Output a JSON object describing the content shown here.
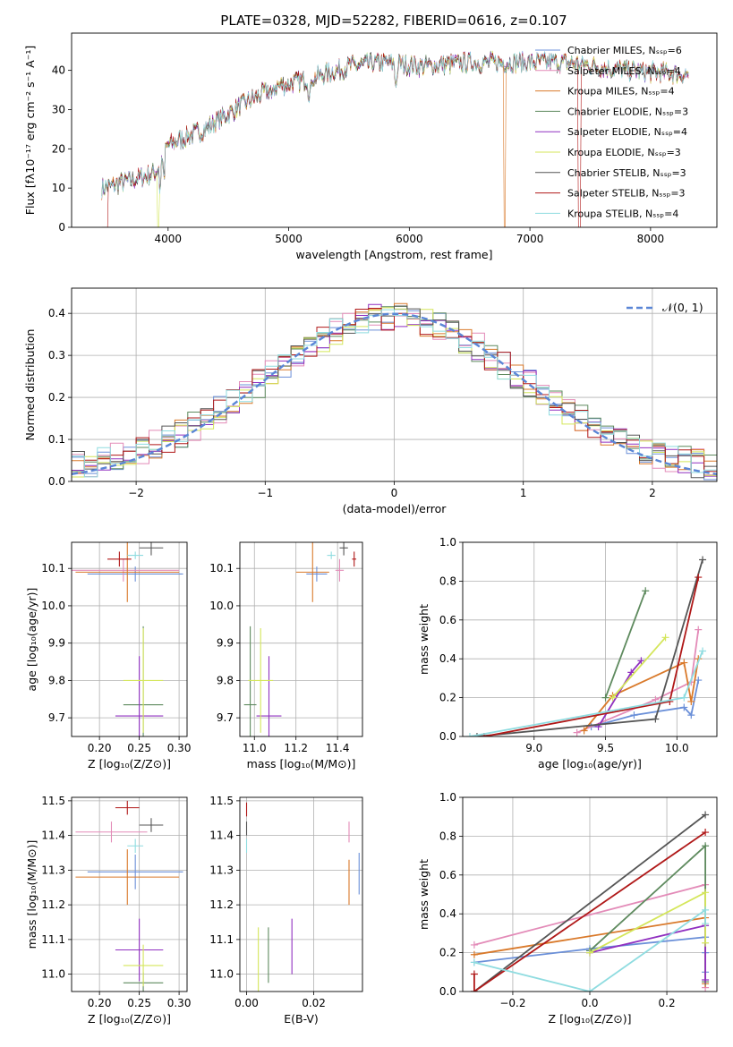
{
  "figure_title": "PLATE=0328, MJD=52282, FIBERID=0616, z=0.107",
  "colors": {
    "Chabrier MILES": "#6a8fd8",
    "Salpeter MILES": "#e38bb8",
    "Kroupa MILES": "#d9792a",
    "Chabrier ELODIE": "#5e8a5e",
    "Salpeter ELODIE": "#9030c0",
    "Kroupa ELODIE": "#d4e65a",
    "Chabrier STELIB": "#555555",
    "Salpeter STELIB": "#b01818",
    "Kroupa STELIB": "#8fdce0"
  },
  "chart_data": [
    {
      "id": "spectrum",
      "type": "line",
      "title": "PLATE=0328, MJD=52282, FIBERID=0616, z=0.107",
      "xlabel": "wavelength [Angstrom, rest frame]",
      "ylabel": "Flux [fλ10⁻¹⁷ erg cm⁻² s⁻¹ A⁻¹]",
      "xlim": [
        3200,
        8550
      ],
      "ylim": [
        0,
        49.5
      ],
      "xticks": [
        4000,
        5000,
        6000,
        7000,
        8000
      ],
      "yticks": [
        0,
        10,
        20,
        30,
        40
      ],
      "grid": false,
      "legend_position": "right",
      "series": [
        {
          "name": "Chabrier MILES, Nₛₛₚ=6"
        },
        {
          "name": "Salpeter MILES, Nₛₛₚ=4"
        },
        {
          "name": "Kroupa MILES, Nₛₛₚ=4"
        },
        {
          "name": "Chabrier ELODIE, Nₛₛₚ=3"
        },
        {
          "name": "Salpeter ELODIE, Nₛₛₚ=4"
        },
        {
          "name": "Kroupa ELODIE, Nₛₛₚ=3"
        },
        {
          "name": "Chabrier STELIB, Nₛₛₚ=3"
        },
        {
          "name": "Salpeter STELIB, Nₛₛₚ=3"
        },
        {
          "name": "Kroupa STELIB, Nₛₛₚ=4"
        }
      ],
      "continuum": [
        [
          3450,
          10
        ],
        [
          3700,
          12
        ],
        [
          3900,
          14
        ],
        [
          4000,
          21
        ],
        [
          4300,
          25
        ],
        [
          4600,
          31
        ],
        [
          4900,
          36
        ],
        [
          5200,
          38
        ],
        [
          5500,
          41
        ],
        [
          5800,
          42
        ],
        [
          6100,
          41
        ],
        [
          6500,
          42
        ],
        [
          6900,
          42
        ],
        [
          7300,
          42
        ],
        [
          7800,
          40
        ],
        [
          8300,
          39
        ]
      ]
    },
    {
      "id": "residuals",
      "type": "bar",
      "xlabel": "(data-model)/error",
      "ylabel": "Normed distribution",
      "xlim": [
        -2.5,
        2.5
      ],
      "ylim": [
        0,
        0.46
      ],
      "xticks": [
        -2,
        -1,
        0,
        1,
        2
      ],
      "yticks": [
        0.0,
        0.1,
        0.2,
        0.3,
        0.4
      ],
      "grid": true,
      "legend": "𝒩(0, 1)",
      "legend_position": "top-right",
      "bin_width": 0.1
    },
    {
      "id": "age_vs_Z",
      "type": "scatter",
      "xlabel": "Z [log₁₀(Z/Z⊙)]",
      "ylabel": "age  [log₁₀(age/yr)]",
      "xlim": [
        0.165,
        0.31
      ],
      "ylim": [
        9.65,
        10.17
      ],
      "xticks": [
        0.2,
        0.25,
        0.3
      ],
      "yticks": [
        9.7,
        9.8,
        9.9,
        10.0,
        10.1
      ],
      "grid": true,
      "points": [
        {
          "model": "Chabrier MILES",
          "x": 0.245,
          "xerr": 0.06,
          "y": 10.085,
          "yerr": 0.02
        },
        {
          "model": "Salpeter MILES",
          "x": 0.23,
          "xerr": 0.07,
          "y": 10.095,
          "yerr": 0.03
        },
        {
          "model": "Kroupa MILES",
          "x": 0.235,
          "xerr": 0.065,
          "y": 10.09,
          "yerr": 0.08
        },
        {
          "model": "Chabrier ELODIE",
          "x": 0.255,
          "xerr": 0.025,
          "y": 9.735,
          "yerr": 0.21
        },
        {
          "model": "Salpeter ELODIE",
          "x": 0.25,
          "xerr": 0.03,
          "y": 9.705,
          "yerr": 0.16
        },
        {
          "model": "Kroupa ELODIE",
          "x": 0.255,
          "xerr": 0.025,
          "y": 9.8,
          "yerr": 0.14
        },
        {
          "model": "Chabrier STELIB",
          "x": 0.265,
          "xerr": 0.015,
          "y": 10.155,
          "yerr": 0.02
        },
        {
          "model": "Salpeter STELIB",
          "x": 0.225,
          "xerr": 0.015,
          "y": 10.125,
          "yerr": 0.02
        },
        {
          "model": "Kroupa STELIB",
          "x": 0.245,
          "xerr": 0.01,
          "y": 10.135,
          "yerr": 0.01
        }
      ]
    },
    {
      "id": "age_vs_mass",
      "type": "scatter",
      "xlabel": "mass [log₁₀(M/M⊙)]",
      "xlim": [
        10.93,
        11.52
      ],
      "ylim": [
        9.65,
        10.17
      ],
      "xticks": [
        11.0,
        11.2,
        11.4
      ],
      "yticks": [
        9.7,
        9.8,
        9.9,
        10.0,
        10.1
      ],
      "grid": true,
      "points": [
        {
          "model": "Chabrier MILES",
          "x": 11.3,
          "xerr": 0.05,
          "y": 10.085,
          "yerr": 0.02
        },
        {
          "model": "Salpeter MILES",
          "x": 11.41,
          "xerr": 0.02,
          "y": 10.095,
          "yerr": 0.03
        },
        {
          "model": "Kroupa MILES",
          "x": 11.28,
          "xerr": 0.08,
          "y": 10.09,
          "yerr": 0.08
        },
        {
          "model": "Chabrier ELODIE",
          "x": 10.98,
          "xerr": 0.03,
          "y": 9.735,
          "yerr": 0.21
        },
        {
          "model": "Salpeter ELODIE",
          "x": 11.07,
          "xerr": 0.06,
          "y": 9.705,
          "yerr": 0.16
        },
        {
          "model": "Kroupa ELODIE",
          "x": 11.03,
          "xerr": 0.06,
          "y": 9.8,
          "yerr": 0.14
        },
        {
          "model": "Chabrier STELIB",
          "x": 11.43,
          "xerr": 0.02,
          "y": 10.155,
          "yerr": 0.02
        },
        {
          "model": "Salpeter STELIB",
          "x": 11.48,
          "xerr": 0.01,
          "y": 10.125,
          "yerr": 0.02
        },
        {
          "model": "Kroupa STELIB",
          "x": 11.37,
          "xerr": 0.02,
          "y": 10.135,
          "yerr": 0.01
        }
      ]
    },
    {
      "id": "weight_vs_age",
      "type": "line",
      "xlabel": "age  [log₁₀(age/yr)]",
      "ylabel": "mass weight",
      "xlim": [
        8.5,
        10.28
      ],
      "ylim": [
        0,
        1.0
      ],
      "xticks": [
        9.0,
        9.5,
        10.0
      ],
      "yticks": [
        0.0,
        0.2,
        0.4,
        0.6,
        0.8,
        1.0
      ],
      "grid": true,
      "series": [
        {
          "model": "Chabrier MILES",
          "x": [
            9.4,
            9.7,
            10.05,
            10.1,
            10.15
          ],
          "y": [
            0.05,
            0.11,
            0.15,
            0.11,
            0.29
          ]
        },
        {
          "model": "Salpeter MILES",
          "x": [
            9.3,
            9.85,
            10.1,
            10.15
          ],
          "y": [
            0.02,
            0.19,
            0.28,
            0.55
          ]
        },
        {
          "model": "Kroupa MILES",
          "x": [
            9.35,
            9.55,
            10.05,
            10.1,
            10.15
          ],
          "y": [
            0.03,
            0.21,
            0.38,
            0.18,
            0.4
          ]
        },
        {
          "model": "Chabrier ELODIE",
          "x": [
            9.5,
            9.78
          ],
          "y": [
            0.2,
            0.75
          ]
        },
        {
          "model": "Salpeter ELODIE",
          "x": [
            9.45,
            9.68,
            9.75
          ],
          "y": [
            0.05,
            0.33,
            0.39
          ]
        },
        {
          "model": "Kroupa ELODIE",
          "x": [
            9.55,
            9.92
          ],
          "y": [
            0.2,
            0.51
          ]
        },
        {
          "model": "Chabrier STELIB",
          "x": [
            8.6,
            9.85,
            10.18
          ],
          "y": [
            0.0,
            0.09,
            0.91
          ]
        },
        {
          "model": "Salpeter STELIB",
          "x": [
            8.65,
            9.95,
            10.15
          ],
          "y": [
            0.0,
            0.18,
            0.82
          ]
        },
        {
          "model": "Kroupa STELIB",
          "x": [
            8.55,
            10.05,
            10.18
          ],
          "y": [
            0.0,
            0.2,
            0.44
          ]
        }
      ]
    },
    {
      "id": "mass_vs_Z",
      "type": "scatter",
      "xlabel": "Z [log₁₀(Z/Z⊙)]",
      "ylabel": "mass [log₁₀(M/M⊙)]",
      "xlim": [
        0.165,
        0.31
      ],
      "ylim": [
        10.95,
        11.51
      ],
      "xticks": [
        0.2,
        0.25,
        0.3
      ],
      "yticks": [
        11.0,
        11.1,
        11.2,
        11.3,
        11.4,
        11.5
      ],
      "grid": true,
      "points": [
        {
          "model": "Chabrier MILES",
          "x": 0.245,
          "xerr": 0.06,
          "y": 11.295,
          "yerr": 0.05
        },
        {
          "model": "Salpeter MILES",
          "x": 0.215,
          "xerr": 0.045,
          "y": 11.41,
          "yerr": 0.03
        },
        {
          "model": "Kroupa MILES",
          "x": 0.235,
          "xerr": 0.065,
          "y": 11.28,
          "yerr": 0.08
        },
        {
          "model": "Chabrier ELODIE",
          "x": 0.255,
          "xerr": 0.025,
          "y": 10.975,
          "yerr": 0.03
        },
        {
          "model": "Salpeter ELODIE",
          "x": 0.25,
          "xerr": 0.03,
          "y": 11.07,
          "yerr": 0.09
        },
        {
          "model": "Kroupa ELODIE",
          "x": 0.255,
          "xerr": 0.025,
          "y": 11.025,
          "yerr": 0.06
        },
        {
          "model": "Chabrier STELIB",
          "x": 0.265,
          "xerr": 0.015,
          "y": 11.43,
          "yerr": 0.02
        },
        {
          "model": "Salpeter STELIB",
          "x": 0.235,
          "xerr": 0.015,
          "y": 11.48,
          "yerr": 0.02
        },
        {
          "model": "Kroupa STELIB",
          "x": 0.245,
          "xerr": 0.01,
          "y": 11.37,
          "yerr": 0.02
        }
      ]
    },
    {
      "id": "mass_vs_EBV",
      "type": "scatter",
      "xlabel": "E(B-V)",
      "xlim": [
        -0.002,
        0.0345
      ],
      "ylim": [
        10.95,
        11.51
      ],
      "xticks": [
        0.0,
        0.02
      ],
      "yticks": [
        11.0,
        11.1,
        11.2,
        11.3,
        11.4,
        11.5
      ],
      "grid": true,
      "points": [
        {
          "model": "Chabrier MILES",
          "x": 0.0335,
          "y": 11.29,
          "yerr": 0.06
        },
        {
          "model": "Salpeter MILES",
          "x": 0.0305,
          "y": 11.41,
          "yerr": 0.03
        },
        {
          "model": "Kroupa MILES",
          "x": 0.0305,
          "y": 11.265,
          "yerr": 0.065
        },
        {
          "model": "Chabrier ELODIE",
          "x": 0.0065,
          "y": 11.055,
          "yerr": 0.08
        },
        {
          "model": "Salpeter ELODIE",
          "x": 0.0135,
          "y": 11.08,
          "yerr": 0.08
        },
        {
          "model": "Kroupa ELODIE",
          "x": 0.0035,
          "y": 11.035,
          "yerr": 0.1
        },
        {
          "model": "Chabrier STELIB",
          "x": 0.0,
          "y": 11.42,
          "yerr": 0.02
        },
        {
          "model": "Salpeter STELIB",
          "x": 0.0,
          "y": 11.475,
          "yerr": 0.02
        },
        {
          "model": "Kroupa STELIB",
          "x": 0.0,
          "y": 11.37,
          "yerr": 0.02
        }
      ]
    },
    {
      "id": "weight_vs_Z",
      "type": "line",
      "xlabel": "Z [log₁₀(Z/Z⊙)]",
      "ylabel": "mass weight",
      "xlim": [
        -0.33,
        0.33
      ],
      "ylim": [
        0,
        1.0
      ],
      "xticks": [
        -0.2,
        0.0,
        0.2
      ],
      "yticks": [
        0.0,
        0.2,
        0.4,
        0.6,
        0.8,
        1.0
      ],
      "grid": true,
      "series": [
        {
          "model": "Chabrier MILES",
          "x": [
            -0.3,
            0.0,
            0.3,
            0.3,
            0.3
          ],
          "y": [
            0.15,
            0.22,
            0.28,
            0.2,
            0.1
          ]
        },
        {
          "model": "Salpeter MILES",
          "x": [
            -0.3,
            0.3,
            0.3
          ],
          "y": [
            0.24,
            0.55,
            0.02
          ]
        },
        {
          "model": "Kroupa MILES",
          "x": [
            -0.3,
            0.3,
            0.3
          ],
          "y": [
            0.19,
            0.38,
            0.04
          ]
        },
        {
          "model": "Chabrier ELODIE",
          "x": [
            0.0,
            0.3,
            0.3
          ],
          "y": [
            0.21,
            0.75,
            0.05
          ]
        },
        {
          "model": "Salpeter ELODIE",
          "x": [
            0.0,
            0.3,
            0.3
          ],
          "y": [
            0.2,
            0.34,
            0.06
          ]
        },
        {
          "model": "Kroupa ELODIE",
          "x": [
            0.0,
            0.3,
            0.3
          ],
          "y": [
            0.2,
            0.51,
            0.25
          ]
        },
        {
          "model": "Chabrier STELIB",
          "x": [
            -0.3,
            0.3
          ],
          "y": [
            0.0,
            0.91
          ]
        },
        {
          "model": "Salpeter STELIB",
          "x": [
            -0.3,
            -0.3,
            0.3
          ],
          "y": [
            0.09,
            0.0,
            0.82
          ]
        },
        {
          "model": "Kroupa STELIB",
          "x": [
            -0.3,
            0.0,
            0.3,
            0.3
          ],
          "y": [
            0.15,
            0.0,
            0.42,
            0.35
          ]
        }
      ]
    }
  ]
}
